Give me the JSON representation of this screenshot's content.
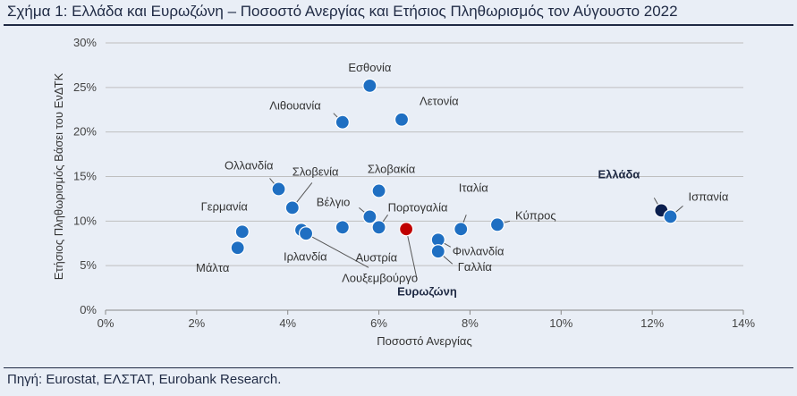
{
  "header": {
    "title": "Σχήμα 1: Ελλάδα και Ευρωζώνη – Ποσοστό Ανεργίας και Ετήσιος Πληθωρισμός τον Αύγουστο 2022"
  },
  "footer": {
    "source": "Πηγή: Eurostat, ΕΛΣΤΑΤ, Eurobank Research."
  },
  "colors": {
    "default_point": "#1f6fc2",
    "greece_point": "#0b1f4f",
    "eurozone_point": "#c00000",
    "grid": "#bfbfbf",
    "leader": "#555555"
  },
  "chart_data": {
    "type": "scatter",
    "xlabel": "Ποσοστό Ανεργίας",
    "ylabel": "Ετήσιος Πληθωρισμός Βάσει του ΕνΔΤΚ",
    "xlim": [
      0,
      14
    ],
    "ylim": [
      0,
      30
    ],
    "x_ticks": [
      "0%",
      "2%",
      "4%",
      "6%",
      "8%",
      "10%",
      "12%",
      "14%"
    ],
    "y_ticks": [
      "0%",
      "5%",
      "10%",
      "15%",
      "20%",
      "25%",
      "30%"
    ],
    "grid": "horizontal",
    "points": [
      {
        "label": "Εσθονία",
        "x": 5.8,
        "y": 25.2,
        "kind": "default",
        "label_pos": "above"
      },
      {
        "label": "Λιθουανία",
        "x": 5.2,
        "y": 21.1,
        "kind": "default",
        "label_pos": "left"
      },
      {
        "label": "Λετονία",
        "x": 6.5,
        "y": 21.4,
        "kind": "default",
        "label_pos": "right"
      },
      {
        "label": "Ολλανδία",
        "x": 3.8,
        "y": 13.6,
        "kind": "default",
        "label_pos": "upleft"
      },
      {
        "label": "Σλοβενία",
        "x": 4.1,
        "y": 11.5,
        "kind": "default",
        "label_pos": "upright"
      },
      {
        "label": "Σλοβακία",
        "x": 6.0,
        "y": 13.4,
        "kind": "default",
        "label_pos": "above"
      },
      {
        "label": "Γερμανία",
        "x": 3.0,
        "y": 8.8,
        "kind": "default",
        "label_pos": "above"
      },
      {
        "label": "Μάλτα",
        "x": 2.9,
        "y": 7.0,
        "kind": "default",
        "label_pos": "below"
      },
      {
        "label": "Ιρλανδία",
        "x": 4.3,
        "y": 9.0,
        "kind": "default",
        "label_pos": "below"
      },
      {
        "label": "Λουξεμβούργο",
        "x": 4.4,
        "y": 8.6,
        "kind": "default",
        "label_pos": "lowright"
      },
      {
        "label": "Βέλγιο",
        "x": 5.8,
        "y": 10.5,
        "kind": "default",
        "label_pos": "upleft"
      },
      {
        "label": "Αυστρία",
        "x": 5.2,
        "y": 9.3,
        "kind": "default",
        "label_pos": "below"
      },
      {
        "label": "Πορτογαλία",
        "x": 6.0,
        "y": 9.3,
        "kind": "default",
        "label_pos": "upright"
      },
      {
        "label": "Ευρωζώνη",
        "x": 6.6,
        "y": 9.1,
        "kind": "eurozone",
        "label_pos": "lowright"
      },
      {
        "label": "Ιταλία",
        "x": 7.8,
        "y": 9.1,
        "kind": "default",
        "label_pos": "above"
      },
      {
        "label": "Φινλανδία",
        "x": 7.3,
        "y": 7.9,
        "kind": "default",
        "label_pos": "right"
      },
      {
        "label": "Γαλλία",
        "x": 7.3,
        "y": 6.6,
        "kind": "default",
        "label_pos": "lowright"
      },
      {
        "label": "Κύπρος",
        "x": 8.6,
        "y": 9.6,
        "kind": "default",
        "label_pos": "upright"
      },
      {
        "label": "Ελλάδα",
        "x": 12.2,
        "y": 11.2,
        "kind": "greece",
        "label_pos": "upleft"
      },
      {
        "label": "Ισπανία",
        "x": 12.4,
        "y": 10.5,
        "kind": "default",
        "label_pos": "upright"
      }
    ]
  }
}
